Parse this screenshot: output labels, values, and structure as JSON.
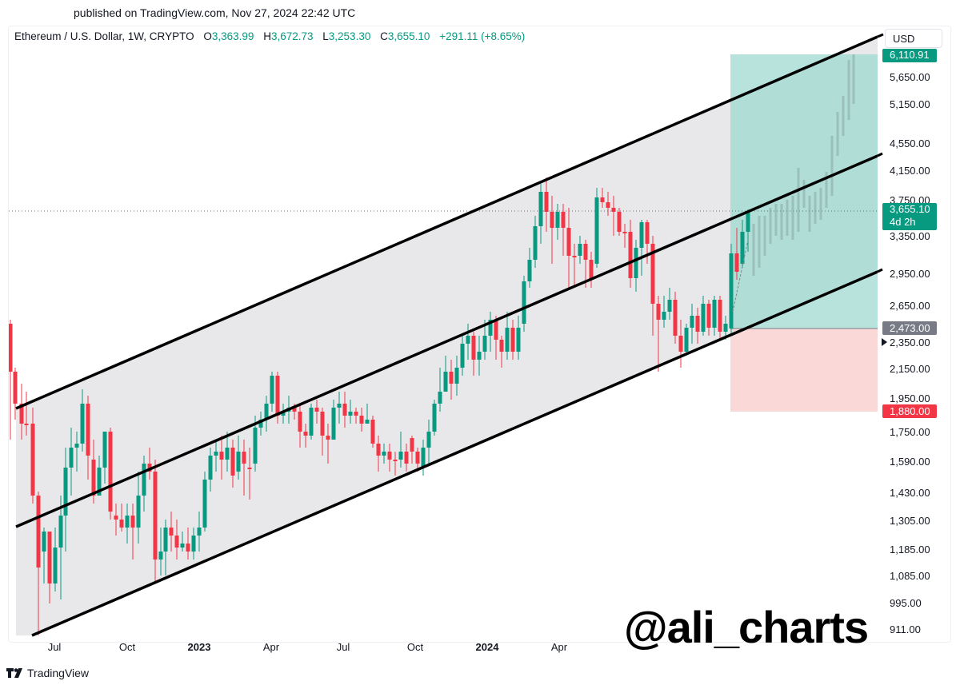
{
  "header": {
    "published": "published on TradingView.com, Nov 27, 2024 22:42 UTC"
  },
  "legend": {
    "symbol": "Ethereum / U.S. Dollar, 1W, CRYPTO",
    "open_label": "O",
    "open": "3,363.99",
    "high_label": "H",
    "high": "3,672.73",
    "low_label": "L",
    "low": "3,253.30",
    "close_label": "C",
    "close": "3,655.10",
    "change": "+291.11 (+8.65%)"
  },
  "price_axis": {
    "currency": "USD",
    "ticks": [
      "5,650.00",
      "5,150.00",
      "4,550.00",
      "4,150.00",
      "3,750.00",
      "3,350.00",
      "2,950.00",
      "2,650.00",
      "2,350.00",
      "2,150.00",
      "1,950.00",
      "1,750.00",
      "1,590.00",
      "1,430.00",
      "1,305.00",
      "1,185.00",
      "1,085.00",
      "995.00",
      "911.00"
    ],
    "tags": {
      "target": "6,110.91",
      "last_price": "3,655.10",
      "countdown": "4d 2h",
      "entry": "2,473.00",
      "stop": "1,880.00"
    }
  },
  "time_axis": {
    "ticks": [
      "Jul",
      "Oct",
      "2023",
      "Apr",
      "Jul",
      "Oct",
      "2024",
      "Apr"
    ]
  },
  "watermark": "@ali_charts",
  "footer": {
    "brand": "TradingView"
  },
  "colors": {
    "up": "#089981",
    "down": "#f23645",
    "channel_fill": "#e8e8ea",
    "profit_zone": "#9fd9d0",
    "loss_zone": "#fbd4d4",
    "entry_tag": "#787b86",
    "target_tag": "#089981",
    "stop_tag": "#f23645"
  },
  "chart_data": {
    "type": "candlestick",
    "title": "Ethereum / U.S. Dollar, 1W, CRYPTO",
    "xlabel": "",
    "ylabel": "USD",
    "y_scale": "log",
    "ylim": [
      880,
      6300
    ],
    "x_ticks": [
      "Jul",
      "Oct",
      "2023",
      "Apr",
      "Jul",
      "Oct",
      "2024",
      "Apr"
    ],
    "y_ticks": [
      5650,
      5150,
      4550,
      4150,
      3750,
      3350,
      2950,
      2650,
      2350,
      2150,
      1950,
      1750,
      1590,
      1430,
      1305,
      1185,
      1085,
      995,
      911
    ],
    "last_candle": {
      "open": 3363.99,
      "high": 3672.73,
      "low": 3253.3,
      "close": 3655.1,
      "change": 291.11,
      "change_pct": 8.65
    },
    "last_price_line": 3655.1,
    "ascending_channel": {
      "upper_line": {
        "start_price_approx": 1900,
        "end_price_approx": 6300
      },
      "middle_line": {
        "start_price_approx": 1290,
        "end_price_approx": 4250
      },
      "lower_line": {
        "start_price_approx": 890,
        "end_price_approx": 3000
      }
    },
    "long_position": {
      "entry": 2473.0,
      "target": 6110.91,
      "stop": 1880.0
    },
    "projection": "ghost bars projecting rise from ~3,650 toward ~6,100"
  }
}
